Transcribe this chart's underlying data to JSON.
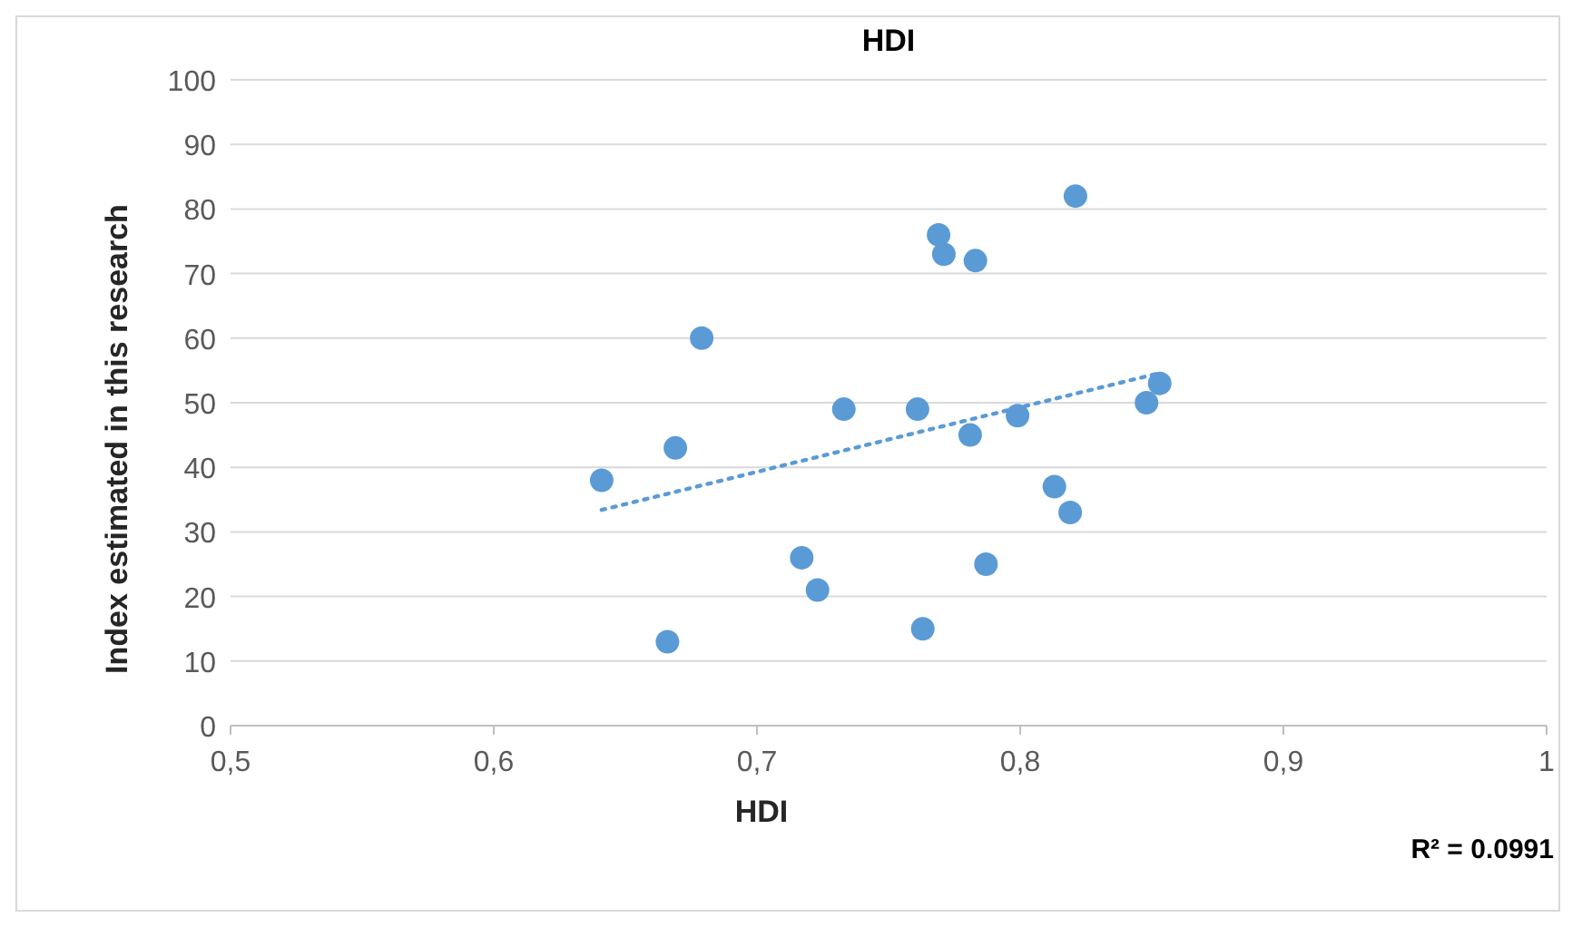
{
  "chart_data": {
    "type": "scatter",
    "title": "HDI",
    "xlabel": "HDI",
    "ylabel": "Index estimated in this research",
    "xlim": [
      0.5,
      1
    ],
    "xticks": [
      {
        "value": 0.5,
        "label": "0,5"
      },
      {
        "value": 0.6,
        "label": "0,6"
      },
      {
        "value": 0.7,
        "label": "0,7"
      },
      {
        "value": 0.8,
        "label": "0,8"
      },
      {
        "value": 0.9,
        "label": "0,9"
      },
      1
    ],
    "ylim": [
      0,
      100
    ],
    "yticks": [
      0,
      10,
      20,
      30,
      40,
      50,
      60,
      70,
      80,
      90,
      100
    ],
    "grid": "y",
    "annotations": [
      "R² = 0.0991"
    ],
    "series": [
      {
        "color": "#5b9bd5",
        "marker": "circle",
        "x": [
          0.641,
          0.669,
          0.666,
          0.679,
          0.717,
          0.723,
          0.733,
          0.761,
          0.763,
          0.769,
          0.771,
          0.781,
          0.783,
          0.787,
          0.799,
          0.813,
          0.819,
          0.821,
          0.848,
          0.853
        ],
        "values": [
          38,
          43,
          13,
          60,
          26,
          21,
          49,
          49,
          15,
          76,
          73,
          45,
          72,
          25,
          48,
          37,
          33,
          82,
          50,
          53
        ]
      },
      {
        "type": "line",
        "color": "#5b9bd5",
        "line_style": "dotted",
        "marker": "none",
        "x": [
          0.641,
          0.853
        ],
        "values": [
          33.4,
          54.6
        ]
      }
    ]
  }
}
